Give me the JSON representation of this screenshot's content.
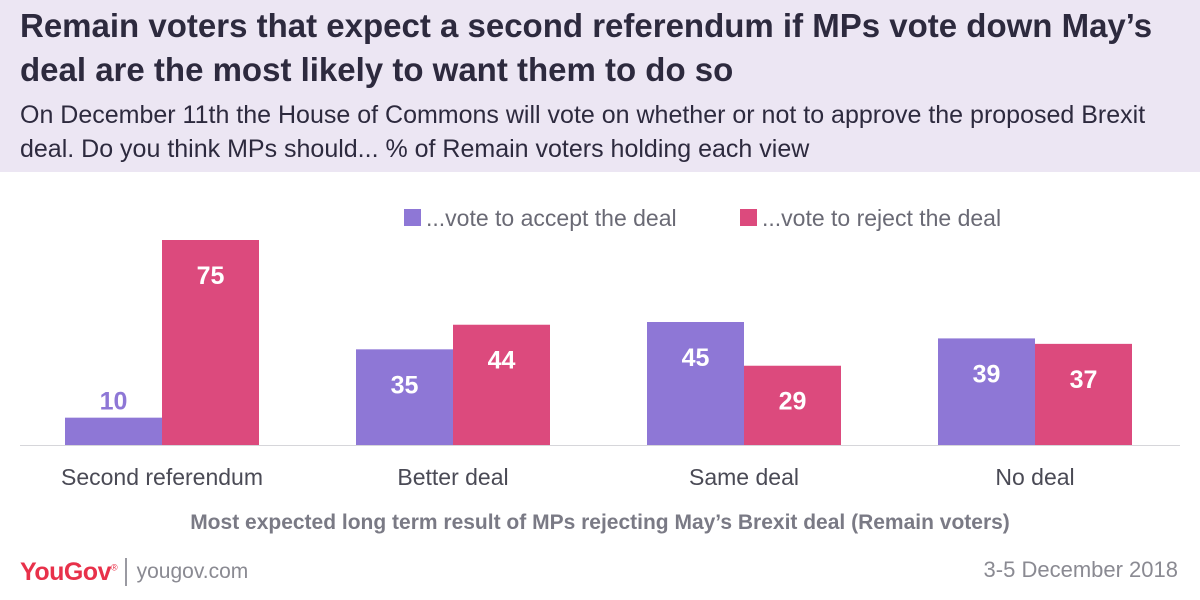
{
  "header": {
    "title": "Remain voters that expect a second referendum if MPs vote down May’s deal are the most likely to want them to do so",
    "subtitle": "On December 11th the House of Commons will vote on whether or not to approve the proposed Brexit deal. Do you think MPs should... % of Remain voters holding each view"
  },
  "chart_data": {
    "type": "bar",
    "title": "Remain voters that expect a second referendum if MPs vote down May’s deal are the most likely to want them to do so",
    "subtitle": "On December 11th the House of Commons will vote on whether or not to approve the proposed Brexit deal. Do you think MPs should... % of Remain voters holding each view",
    "categories": [
      "Second referendum",
      "Better deal",
      "Same deal",
      "No deal"
    ],
    "series": [
      {
        "name": "...vote to accept the deal",
        "color": "#8e77d6",
        "values": [
          10,
          35,
          45,
          39
        ]
      },
      {
        "name": "...vote to reject the deal",
        "color": "#dc4a7d",
        "values": [
          75,
          44,
          29,
          37
        ]
      }
    ],
    "xlabel": "Most expected long term result of MPs rejecting May’s Brexit deal (Remain voters)",
    "ylabel": "",
    "ylim": [
      0,
      75
    ],
    "grid": false,
    "legend": "top",
    "data_labels": true
  },
  "footer": {
    "brand": "YouGov",
    "url": "yougov.com",
    "date": "3-5 December 2018"
  },
  "colors": {
    "header_background": "#ece6f3",
    "text": "#2d2a3e",
    "brand": "#e8314a"
  }
}
